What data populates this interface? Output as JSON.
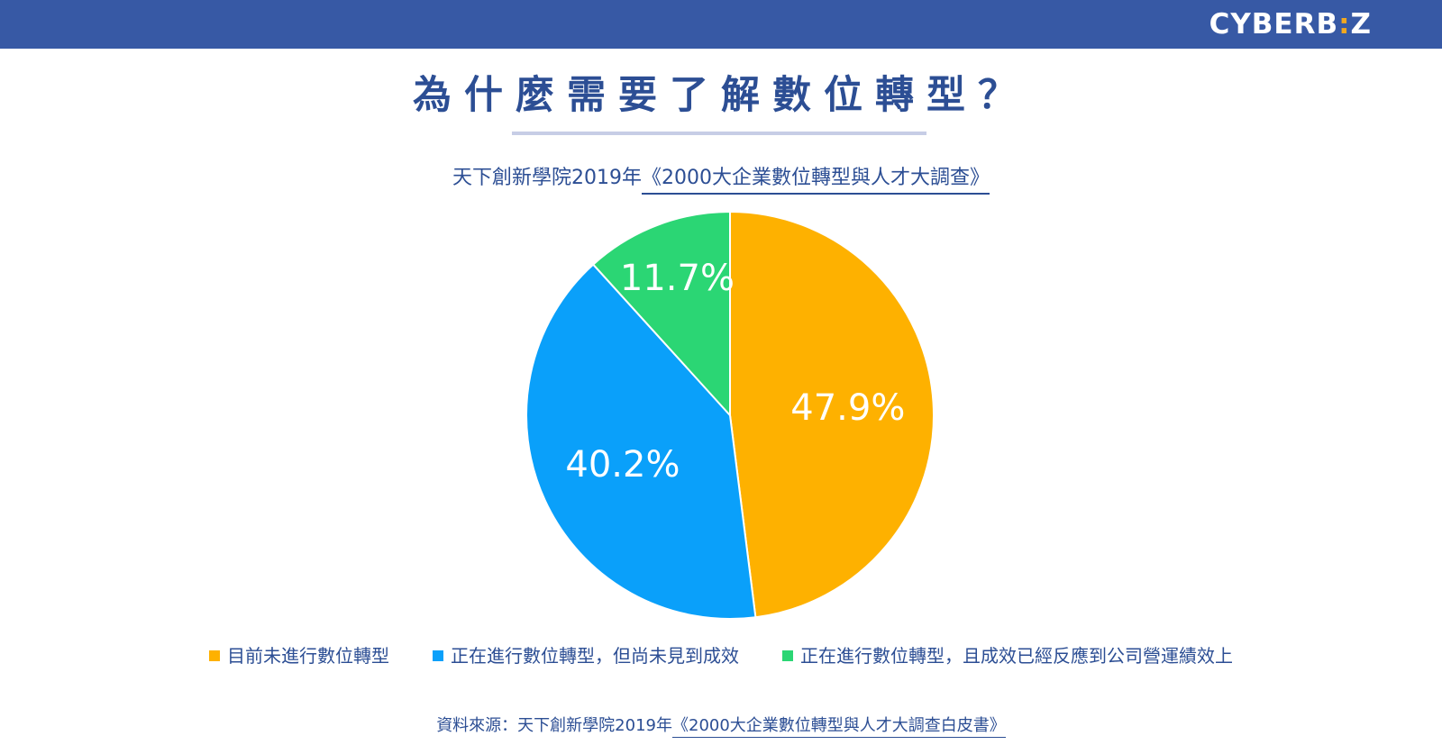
{
  "header": {
    "brand": {
      "prefix": "CYBERB",
      "accent": ":",
      "suffix": "Z"
    }
  },
  "title": "為什麼需要了解數位轉型？",
  "subtitle": {
    "prefix": "天下創新學院2019年",
    "underlined": "《2000大企業數位轉型與人才大調查》"
  },
  "chart_data": {
    "type": "pie",
    "start_angle_deg": 0,
    "direction": "clockwise",
    "series": [
      {
        "name": "目前未進行數位轉型",
        "value": 47.9,
        "label": "47.9%",
        "color": "#feb100"
      },
      {
        "name": "正在進行數位轉型，但尚未見到成效",
        "value": 40.2,
        "label": "40.2%",
        "color": "#0aa0fa"
      },
      {
        "name": "正在進行數位轉型，且成效已經反應到公司營運績效上",
        "value": 11.7,
        "label": "11.7%",
        "color": "#2bd674"
      }
    ]
  },
  "source": {
    "prefix": "資料來源：天下創新學院2019年",
    "underlined": "《2000大企業數位轉型與人才大調查白皮書》"
  },
  "colors": {
    "top_bar": "#3759a5",
    "text_primary": "#2c4e94"
  }
}
